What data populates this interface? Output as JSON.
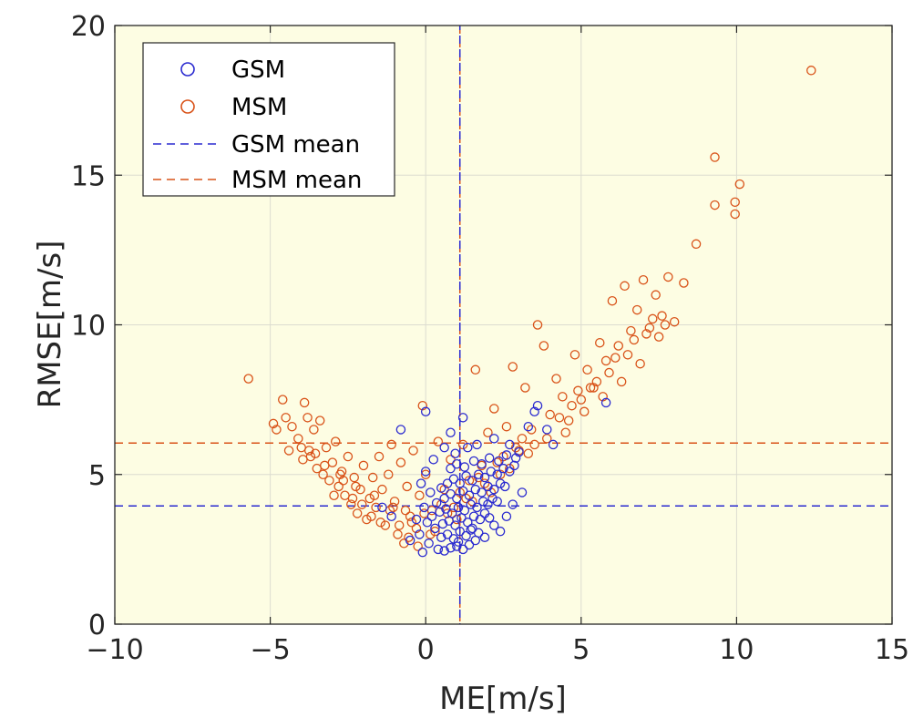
{
  "chart_data": {
    "type": "scatter",
    "xlabel": "ME[m/s]",
    "ylabel": "RMSE[m/s]",
    "xlim": [
      -10,
      15
    ],
    "ylim": [
      0,
      20
    ],
    "xticks": [
      -10,
      -5,
      0,
      5,
      10,
      15
    ],
    "yticks": [
      0,
      5,
      10,
      15,
      20
    ],
    "xtick_labels": [
      "−10",
      "−5",
      "0",
      "5",
      "10",
      "15"
    ],
    "ytick_labels": [
      "0",
      "5",
      "10",
      "15",
      "20"
    ],
    "grid": true,
    "legend_position": "top-left",
    "background_color": "#fdfde3",
    "series": [
      {
        "name": "GSM",
        "marker": "circle-open",
        "color": "#2a2ad0",
        "points": [
          [
            0.4,
            2.5
          ],
          [
            0.6,
            2.45
          ],
          [
            0.8,
            2.55
          ],
          [
            1.0,
            2.6
          ],
          [
            1.2,
            2.5
          ],
          [
            1.4,
            2.65
          ],
          [
            1.6,
            2.8
          ],
          [
            0.5,
            2.9
          ],
          [
            0.7,
            3.0
          ],
          [
            0.9,
            2.85
          ],
          [
            1.1,
            3.1
          ],
          [
            1.3,
            2.95
          ],
          [
            1.5,
            3.2
          ],
          [
            1.7,
            3.05
          ],
          [
            0.3,
            3.2
          ],
          [
            0.55,
            3.35
          ],
          [
            0.75,
            3.45
          ],
          [
            0.95,
            3.3
          ],
          [
            1.15,
            3.55
          ],
          [
            1.35,
            3.4
          ],
          [
            1.55,
            3.6
          ],
          [
            1.75,
            3.5
          ],
          [
            1.9,
            3.7
          ],
          [
            2.05,
            3.55
          ],
          [
            0.2,
            3.6
          ],
          [
            0.45,
            3.75
          ],
          [
            0.65,
            3.85
          ],
          [
            0.85,
            3.7
          ],
          [
            1.05,
            3.9
          ],
          [
            1.25,
            3.8
          ],
          [
            1.45,
            4.0
          ],
          [
            1.65,
            3.9
          ],
          [
            1.85,
            4.1
          ],
          [
            2.0,
            4.0
          ],
          [
            2.15,
            4.2
          ],
          [
            2.3,
            4.1
          ],
          [
            0.35,
            4.05
          ],
          [
            0.6,
            4.2
          ],
          [
            0.8,
            4.35
          ],
          [
            1.0,
            4.2
          ],
          [
            1.2,
            4.45
          ],
          [
            1.4,
            4.3
          ],
          [
            1.6,
            4.5
          ],
          [
            1.8,
            4.4
          ],
          [
            2.0,
            4.6
          ],
          [
            2.2,
            4.5
          ],
          [
            2.4,
            4.7
          ],
          [
            2.55,
            4.6
          ],
          [
            0.5,
            4.55
          ],
          [
            0.7,
            4.7
          ],
          [
            0.9,
            4.85
          ],
          [
            1.1,
            4.7
          ],
          [
            1.3,
            4.95
          ],
          [
            1.5,
            4.8
          ],
          [
            1.7,
            5.0
          ],
          [
            1.9,
            4.9
          ],
          [
            2.1,
            5.1
          ],
          [
            2.3,
            5.0
          ],
          [
            2.5,
            5.2
          ],
          [
            2.7,
            5.1
          ],
          [
            2.85,
            5.3
          ],
          [
            0.8,
            5.2
          ],
          [
            1.0,
            5.35
          ],
          [
            1.25,
            5.25
          ],
          [
            1.55,
            5.45
          ],
          [
            1.8,
            5.35
          ],
          [
            2.05,
            5.55
          ],
          [
            2.35,
            5.45
          ],
          [
            2.6,
            5.65
          ],
          [
            2.9,
            5.55
          ],
          [
            3.0,
            5.75
          ],
          [
            -0.1,
            2.4
          ],
          [
            0.1,
            2.7
          ],
          [
            -0.2,
            3.0
          ],
          [
            0.05,
            3.4
          ],
          [
            -0.3,
            3.5
          ],
          [
            -0.05,
            3.9
          ],
          [
            0.15,
            4.4
          ],
          [
            -0.15,
            4.7
          ],
          [
            0.0,
            5.1
          ],
          [
            0.25,
            5.5
          ],
          [
            0.95,
            5.7
          ],
          [
            1.35,
            5.9
          ],
          [
            1.65,
            6.0
          ],
          [
            2.2,
            6.2
          ],
          [
            3.3,
            6.6
          ],
          [
            3.5,
            7.1
          ],
          [
            0.0,
            7.1
          ],
          [
            -0.8,
            6.5
          ],
          [
            0.8,
            6.4
          ],
          [
            1.2,
            6.9
          ],
          [
            -1.1,
            3.6
          ],
          [
            -1.4,
            3.9
          ],
          [
            -0.5,
            2.8
          ],
          [
            2.4,
            3.1
          ],
          [
            2.6,
            3.6
          ],
          [
            2.8,
            4.0
          ],
          [
            3.1,
            4.4
          ],
          [
            1.9,
            2.9
          ],
          [
            2.2,
            3.3
          ],
          [
            3.6,
            7.3
          ],
          [
            4.1,
            6.0
          ],
          [
            5.8,
            7.4
          ],
          [
            3.9,
            6.5
          ],
          [
            2.7,
            6.0
          ],
          [
            0.6,
            5.9
          ],
          [
            1.45,
            3.15
          ],
          [
            1.05,
            2.75
          ]
        ]
      },
      {
        "name": "MSM",
        "marker": "circle-open",
        "color": "#d95319",
        "points": [
          [
            -5.7,
            8.2
          ],
          [
            -4.9,
            6.7
          ],
          [
            -4.8,
            6.5
          ],
          [
            -4.6,
            7.5
          ],
          [
            -4.5,
            6.9
          ],
          [
            -4.3,
            6.6
          ],
          [
            -4.1,
            6.2
          ],
          [
            -4.0,
            5.9
          ],
          [
            -3.9,
            7.4
          ],
          [
            -3.8,
            6.9
          ],
          [
            -3.7,
            5.6
          ],
          [
            -3.6,
            6.5
          ],
          [
            -3.5,
            5.2
          ],
          [
            -3.4,
            6.8
          ],
          [
            -3.3,
            5.0
          ],
          [
            -3.2,
            5.9
          ],
          [
            -3.1,
            4.8
          ],
          [
            -3.0,
            5.4
          ],
          [
            -2.9,
            6.1
          ],
          [
            -2.8,
            4.6
          ],
          [
            -2.7,
            5.1
          ],
          [
            -2.6,
            4.3
          ],
          [
            -2.5,
            5.6
          ],
          [
            -2.4,
            4.0
          ],
          [
            -2.3,
            4.9
          ],
          [
            -2.2,
            3.7
          ],
          [
            -2.1,
            4.5
          ],
          [
            -2.0,
            5.3
          ],
          [
            -1.9,
            3.5
          ],
          [
            -1.8,
            4.2
          ],
          [
            -1.7,
            4.9
          ],
          [
            -1.6,
            3.9
          ],
          [
            -1.5,
            5.6
          ],
          [
            -1.4,
            4.5
          ],
          [
            -1.3,
            3.3
          ],
          [
            -1.2,
            5.0
          ],
          [
            -1.1,
            6.0
          ],
          [
            -1.0,
            4.1
          ],
          [
            -0.9,
            3.0
          ],
          [
            -0.8,
            5.4
          ],
          [
            -0.7,
            2.7
          ],
          [
            -0.6,
            4.6
          ],
          [
            -0.5,
            3.6
          ],
          [
            -0.4,
            5.8
          ],
          [
            -0.3,
            3.2
          ],
          [
            -0.2,
            4.3
          ],
          [
            -0.1,
            7.3
          ],
          [
            0.0,
            5.0
          ],
          [
            0.2,
            3.8
          ],
          [
            0.4,
            6.1
          ],
          [
            0.6,
            4.5
          ],
          [
            0.8,
            5.5
          ],
          [
            1.0,
            3.5
          ],
          [
            1.2,
            6.0
          ],
          [
            1.4,
            4.8
          ],
          [
            1.6,
            8.5
          ],
          [
            1.8,
            5.3
          ],
          [
            2.0,
            6.4
          ],
          [
            2.2,
            7.2
          ],
          [
            2.4,
            5.0
          ],
          [
            2.6,
            6.6
          ],
          [
            2.8,
            8.6
          ],
          [
            3.0,
            5.8
          ],
          [
            3.2,
            7.9
          ],
          [
            3.4,
            6.5
          ],
          [
            3.6,
            10.0
          ],
          [
            3.8,
            9.3
          ],
          [
            4.0,
            7.0
          ],
          [
            4.2,
            8.2
          ],
          [
            4.4,
            7.6
          ],
          [
            4.6,
            6.8
          ],
          [
            4.8,
            9.0
          ],
          [
            5.0,
            7.5
          ],
          [
            5.2,
            8.5
          ],
          [
            5.4,
            7.9
          ],
          [
            5.6,
            9.4
          ],
          [
            5.8,
            8.8
          ],
          [
            6.0,
            10.8
          ],
          [
            6.2,
            9.3
          ],
          [
            6.4,
            11.3
          ],
          [
            6.6,
            9.8
          ],
          [
            6.8,
            10.5
          ],
          [
            7.0,
            11.5
          ],
          [
            7.2,
            9.9
          ],
          [
            7.4,
            11.0
          ],
          [
            7.6,
            10.3
          ],
          [
            7.8,
            11.6
          ],
          [
            8.0,
            10.1
          ],
          [
            8.3,
            11.4
          ],
          [
            8.7,
            12.7
          ],
          [
            9.3,
            15.6
          ],
          [
            9.3,
            14.0
          ],
          [
            9.95,
            14.1
          ],
          [
            10.1,
            14.7
          ],
          [
            9.95,
            13.7
          ],
          [
            12.4,
            18.5
          ],
          [
            -4.4,
            5.8
          ],
          [
            -3.95,
            5.5
          ],
          [
            -3.55,
            5.7
          ],
          [
            -2.95,
            4.3
          ],
          [
            -2.65,
            4.8
          ],
          [
            -2.35,
            4.2
          ],
          [
            -2.05,
            4.0
          ],
          [
            -1.75,
            3.6
          ],
          [
            -1.45,
            3.4
          ],
          [
            -1.15,
            3.8
          ],
          [
            -0.85,
            3.3
          ],
          [
            -0.55,
            2.9
          ],
          [
            -0.25,
            2.6
          ],
          [
            0.3,
            3.1
          ],
          [
            0.9,
            3.9
          ],
          [
            1.5,
            4.1
          ],
          [
            2.1,
            4.4
          ],
          [
            2.7,
            5.2
          ],
          [
            3.3,
            5.7
          ],
          [
            3.9,
            6.2
          ],
          [
            4.5,
            6.4
          ],
          [
            5.1,
            7.1
          ],
          [
            5.7,
            7.6
          ],
          [
            6.3,
            8.1
          ],
          [
            6.9,
            8.7
          ],
          [
            7.5,
            9.6
          ],
          [
            4.3,
            6.9
          ],
          [
            4.9,
            7.8
          ],
          [
            5.5,
            8.1
          ],
          [
            6.1,
            8.9
          ],
          [
            6.7,
            9.5
          ],
          [
            7.3,
            10.2
          ],
          [
            3.5,
            6.0
          ],
          [
            3.1,
            6.2
          ],
          [
            2.5,
            5.6
          ],
          [
            1.9,
            4.7
          ],
          [
            1.3,
            4.2
          ],
          [
            0.7,
            3.7
          ],
          [
            -3.75,
            5.8
          ],
          [
            -3.25,
            5.3
          ],
          [
            -2.75,
            5.0
          ],
          [
            -2.25,
            4.6
          ],
          [
            -1.65,
            4.3
          ],
          [
            -1.05,
            3.9
          ],
          [
            -0.45,
            3.4
          ],
          [
            0.15,
            3.0
          ],
          [
            4.7,
            7.3
          ],
          [
            5.3,
            7.9
          ],
          [
            5.9,
            8.4
          ],
          [
            6.5,
            9.0
          ],
          [
            7.1,
            9.7
          ],
          [
            7.7,
            10.0
          ],
          [
            2.9,
            5.9
          ],
          [
            2.3,
            5.4
          ],
          [
            1.7,
            4.9
          ],
          [
            1.1,
            4.4
          ],
          [
            0.5,
            4.0
          ],
          [
            -0.05,
            3.7
          ],
          [
            -0.65,
            3.8
          ]
        ]
      },
      {
        "name": "GSM mean",
        "line": "dashed",
        "color": "#2a2ad0",
        "vertical_x": 1.1,
        "horizontal_y": 3.95
      },
      {
        "name": "MSM mean",
        "line": "dashed",
        "color": "#d95319",
        "vertical_x": 1.1,
        "horizontal_y": 6.05
      }
    ]
  }
}
